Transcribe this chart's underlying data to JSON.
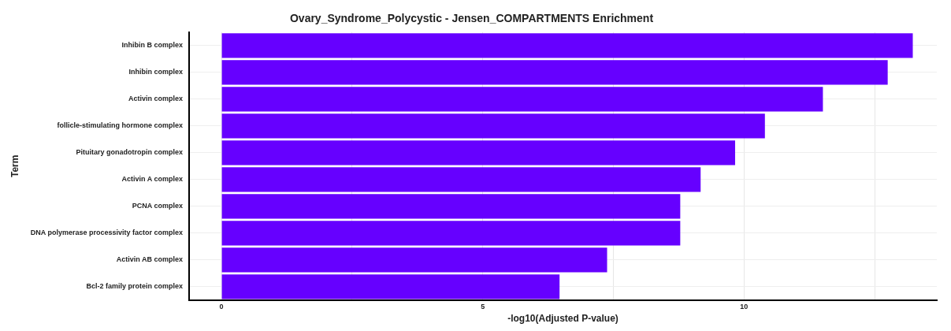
{
  "chart_data": {
    "type": "bar",
    "orientation": "horizontal",
    "title": "Ovary_Syndrome_Polycystic - Jensen_COMPARTMENTS Enrichment",
    "xlabel": "-log10(Adjusted P-value)",
    "ylabel": "Term",
    "categories": [
      "Inhibin B complex",
      "Inhibin complex",
      "Activin complex",
      "follicle-stimulating hormone complex",
      "Pituitary gonadotropin complex",
      "Activin A complex",
      "PCNA complex",
      "DNA polymerase processivity factor complex",
      "Activin AB complex",
      "Bcl-2 family protein complex"
    ],
    "values": [
      13.23,
      12.75,
      11.51,
      10.4,
      9.83,
      9.17,
      8.78,
      8.78,
      7.38,
      6.47
    ],
    "color": "#6600ff",
    "xlim": [
      -0.62,
      13.69
    ],
    "xticks": [
      0,
      {
        "value": 2.5,
        "label": null
      },
      5,
      {
        "value": 7.5,
        "label": null
      },
      10,
      {
        "value": 12.5,
        "label": null
      }
    ],
    "grid": true,
    "legend": false
  }
}
